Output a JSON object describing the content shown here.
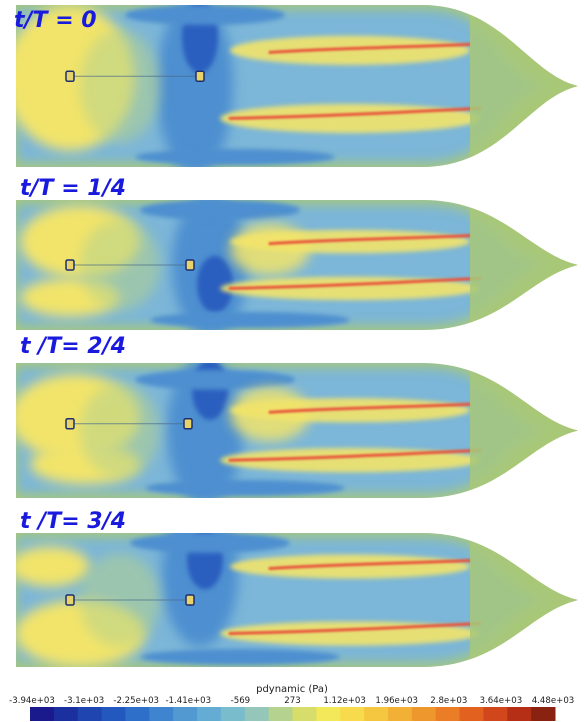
{
  "frames": [
    {
      "title": "t/T = 0",
      "phase": 0
    },
    {
      "title": "t/T = 1/4",
      "phase": 1
    },
    {
      "title": "t /T= 2/4",
      "phase": 2
    },
    {
      "title": "t /T= 3/4",
      "phase": 3
    }
  ],
  "colorbar": {
    "title": "pdynamic (Pa)",
    "ticks": [
      "-3.94e+03",
      "-3.1e+03",
      "-2.25e+03",
      "-1.41e+03",
      "-569",
      "273",
      "1.12e+03",
      "1.96e+03",
      "2.8e+03",
      "3.64e+03",
      "4.48e+03"
    ],
    "colors": [
      "#1a1a8c",
      "#1c2f9e",
      "#1f45b0",
      "#2359be",
      "#2d6fc9",
      "#3f84cf",
      "#5299d2",
      "#64acd4",
      "#79bccc",
      "#94c7b9",
      "#b5d28e",
      "#d6dd6a",
      "#f3e85a",
      "#f7db4c",
      "#f5c740",
      "#f2b036",
      "#ee972d",
      "#ea7d26",
      "#e2611f",
      "#d2461b",
      "#b52f17",
      "#8a2212"
    ]
  },
  "colors": {
    "title": "#1a1adf",
    "hull_green": "#a8c878",
    "light_blue": "#7cb6d8",
    "mid_blue": "#4d8fd0",
    "deep_blue": "#2c5fbf",
    "yellow": "#f2e46a",
    "red_streak": "#e8533b"
  }
}
